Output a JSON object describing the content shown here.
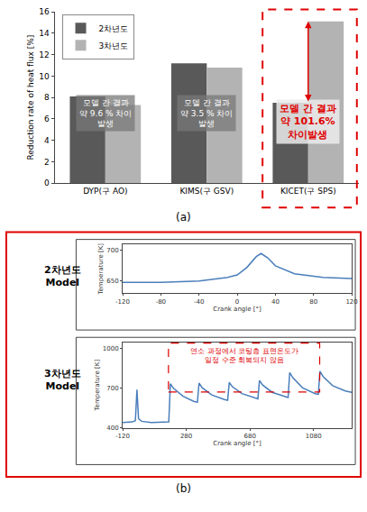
{
  "panel_labels": [
    "(a)",
    "(b)"
  ],
  "chart_data": [
    {
      "type": "bar",
      "y_label": "Reduction rate of heat flux [%]",
      "categories": [
        "DYP(구 AO)",
        "KIMS(구 GSV)",
        "KICET(구 SPS)"
      ],
      "series": [
        {
          "name": "2차년도",
          "color": "#595959",
          "values": [
            8.1,
            11.2,
            7.5
          ]
        },
        {
          "name": "3차년도",
          "color": "#b3b3b3",
          "values": [
            7.3,
            10.8,
            15.1
          ]
        }
      ],
      "ylim": [
        0,
        16
      ],
      "yticks": [
        0,
        2,
        4,
        6,
        8,
        10,
        12,
        14,
        16
      ],
      "grid": false,
      "legend": "upper left",
      "annotations": [
        {
          "category": "DYP(구 AO)",
          "text": [
            "모델 간 결과",
            "약 9.6 % 차이",
            "발생"
          ],
          "color": "#ffffff"
        },
        {
          "category": "KIMS(구 GSV)",
          "text": [
            "모델 간 결과",
            "약 3.5 % 차이",
            "발생"
          ],
          "color": "#ffffff"
        },
        {
          "category": "KICET(구 SPS)",
          "text": [
            "모델 간 결과",
            "약 101.6%",
            "차이발생"
          ],
          "color": "#e00000",
          "line_style": "dash"
        }
      ]
    },
    {
      "type": "line",
      "title": [
        "2차년도",
        "Model"
      ],
      "x_label": "Crank angle [°]",
      "y_label": "Temperature [K]",
      "x": [
        -120,
        -80,
        -40,
        -10,
        0,
        10,
        20,
        25,
        32,
        40,
        60,
        90,
        120
      ],
      "values": [
        648,
        648,
        650,
        656,
        660,
        672,
        690,
        695,
        688,
        675,
        662,
        656,
        654
      ],
      "color": "#4a7ebb",
      "xlim": [
        -120,
        120
      ],
      "xticks": [
        -120,
        -80,
        -40,
        0,
        40,
        80,
        120
      ],
      "ylim": [
        630,
        710
      ],
      "yticks": [
        650,
        700
      ],
      "grid": false
    },
    {
      "type": "line",
      "title": [
        "3차년도",
        "Model"
      ],
      "x_label": "Crank angle [°]",
      "y_label": "Temperature [K]",
      "x": [
        -120,
        -60,
        -40,
        -30,
        -20,
        0,
        60,
        120,
        170,
        180,
        200,
        260,
        330,
        350,
        360,
        380,
        440,
        520,
        540,
        550,
        570,
        630,
        710,
        730,
        740,
        760,
        820,
        900,
        920,
        930,
        950,
        1010,
        1090,
        1110,
        1120,
        1140,
        1200,
        1280,
        1320
      ],
      "values": [
        440,
        445,
        455,
        690,
        470,
        450,
        440,
        440,
        445,
        735,
        700,
        640,
        600,
        595,
        740,
        705,
        650,
        615,
        610,
        745,
        712,
        660,
        625,
        620,
        760,
        725,
        670,
        635,
        630,
        820,
        780,
        705,
        660,
        655,
        830,
        790,
        720,
        680,
        670
      ],
      "color": "#4a7ebb",
      "xlim": [
        -120,
        1320
      ],
      "xticks": [
        -120,
        280,
        680,
        1080
      ],
      "ylim": [
        400,
        1050
      ],
      "yticks": [
        400,
        700,
        1000
      ],
      "grid": false,
      "annotations": [
        {
          "text": [
            "연소 과정에서 코팅층 표면온도가",
            "일정 수준 회복되지 않음"
          ],
          "color": "#e00000",
          "line_style": "dash"
        }
      ]
    }
  ]
}
